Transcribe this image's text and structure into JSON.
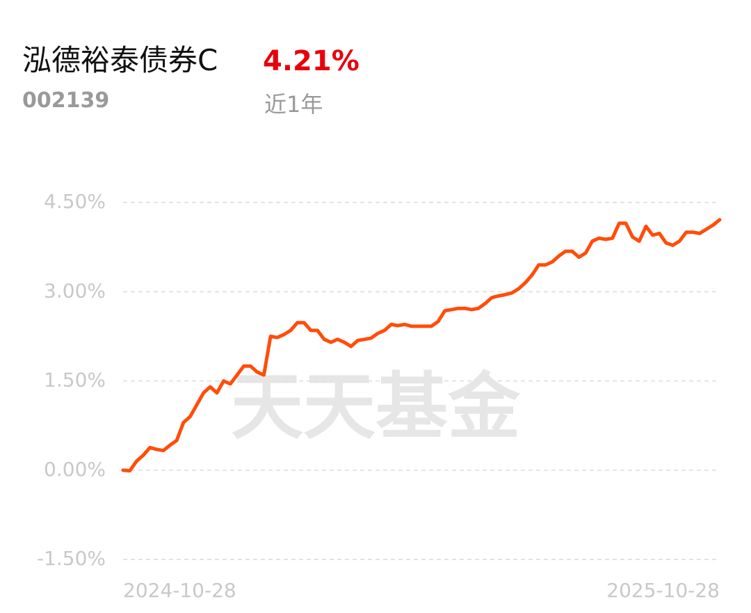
{
  "header": {
    "fund_name": "泓德裕泰债券C",
    "return": "4.21%",
    "code": "002139",
    "period": "近1年"
  },
  "chart_data": {
    "type": "line",
    "watermark": "天天基金",
    "categories": [
      "2024-10-28",
      null,
      null,
      null,
      null,
      null,
      null,
      null,
      null,
      null,
      null,
      null,
      null,
      null,
      null,
      null,
      null,
      null,
      null,
      null,
      null,
      null,
      null,
      null,
      null,
      null,
      null,
      null,
      null,
      null,
      null,
      null,
      null,
      null,
      null,
      null,
      null,
      null,
      null,
      null,
      null,
      null,
      null,
      null,
      null,
      null,
      null,
      null,
      null,
      null,
      null,
      null,
      null,
      null,
      null,
      null,
      null,
      null,
      null,
      null,
      null,
      null,
      null,
      null,
      null,
      null,
      null,
      null,
      null,
      null,
      null,
      null,
      null,
      null,
      null,
      null,
      null,
      null,
      null,
      null,
      null,
      null,
      null,
      null,
      null,
      null,
      null,
      null,
      null,
      "2025-10-28"
    ],
    "series": [
      {
        "color": "#ff4d0a",
        "values": [
          0.0,
          -0.01,
          0.15,
          0.25,
          0.38,
          0.35,
          0.33,
          0.42,
          0.5,
          0.8,
          0.9,
          1.1,
          1.3,
          1.4,
          1.3,
          1.5,
          1.45,
          1.6,
          1.75,
          1.75,
          1.65,
          1.6,
          2.25,
          2.23,
          2.28,
          2.35,
          2.48,
          2.48,
          2.35,
          2.35,
          2.2,
          2.15,
          2.2,
          2.15,
          2.08,
          2.18,
          2.2,
          2.22,
          2.3,
          2.35,
          2.45,
          2.43,
          2.45,
          2.42,
          2.42,
          2.42,
          2.42,
          2.5,
          2.68,
          2.7,
          2.72,
          2.72,
          2.7,
          2.72,
          2.8,
          2.9,
          2.93,
          2.95,
          2.98,
          3.05,
          3.15,
          3.28,
          3.45,
          3.45,
          3.5,
          3.6,
          3.68,
          3.68,
          3.58,
          3.65,
          3.85,
          3.9,
          3.88,
          3.9,
          4.15,
          4.15,
          3.92,
          3.85,
          4.1,
          3.95,
          3.98,
          3.82,
          3.78,
          3.85,
          4.0,
          4.0,
          3.98,
          4.05,
          4.12,
          4.21
        ]
      }
    ],
    "ylim": [
      -1.5,
      4.5
    ],
    "yticks": [
      {
        "value": -1.5,
        "label": "-1.50%"
      },
      {
        "value": 0,
        "label": "0.00%"
      },
      {
        "value": 1.5,
        "label": "1.50%"
      },
      {
        "value": 3,
        "label": "3.00%"
      },
      {
        "value": 4.5,
        "label": "4.50%"
      }
    ],
    "grid": true
  }
}
